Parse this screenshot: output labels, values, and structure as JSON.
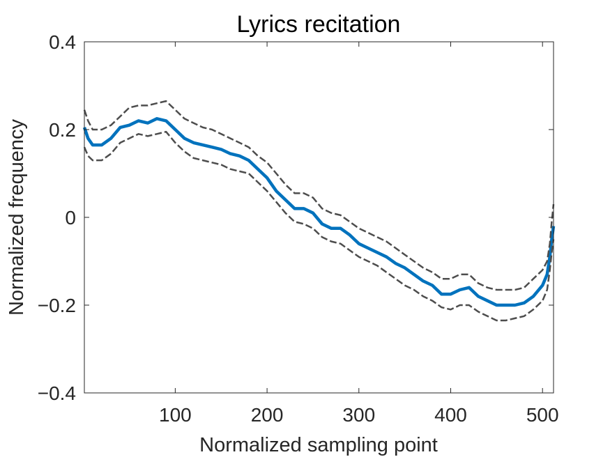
{
  "chart_data": {
    "type": "line",
    "title": "Lyrics recitation",
    "xlabel": "Normalized sampling point",
    "ylabel": "Normalized frequency",
    "xlim": [
      1,
      512
    ],
    "ylim": [
      -0.4,
      0.4
    ],
    "xticks": [
      100,
      200,
      300,
      400,
      500
    ],
    "yticks": [
      -0.4,
      -0.2,
      0,
      0.2,
      0.4
    ],
    "xtick_labels": [
      "100",
      "200",
      "300",
      "400",
      "500"
    ],
    "ytick_labels": [
      "−0.4",
      "−0.2",
      "0",
      "0.2",
      "0.4"
    ],
    "grid": false,
    "colors": {
      "mean": "#0072BD",
      "bounds": "#4D4D4D",
      "axes": "#262626"
    },
    "x": [
      1,
      5,
      10,
      20,
      30,
      40,
      50,
      60,
      70,
      80,
      90,
      100,
      110,
      120,
      130,
      140,
      150,
      160,
      170,
      180,
      190,
      200,
      210,
      220,
      230,
      240,
      250,
      260,
      270,
      280,
      290,
      300,
      310,
      320,
      330,
      340,
      350,
      360,
      370,
      380,
      390,
      400,
      410,
      420,
      430,
      440,
      450,
      460,
      470,
      480,
      490,
      500,
      505,
      508,
      510,
      512
    ],
    "series": [
      {
        "style": "solid",
        "values": [
          0.205,
          0.18,
          0.165,
          0.165,
          0.18,
          0.205,
          0.21,
          0.22,
          0.215,
          0.225,
          0.22,
          0.2,
          0.18,
          0.17,
          0.165,
          0.16,
          0.155,
          0.145,
          0.14,
          0.13,
          0.11,
          0.09,
          0.06,
          0.04,
          0.02,
          0.02,
          0.01,
          -0.015,
          -0.025,
          -0.025,
          -0.04,
          -0.06,
          -0.07,
          -0.08,
          -0.09,
          -0.105,
          -0.115,
          -0.13,
          -0.145,
          -0.155,
          -0.175,
          -0.175,
          -0.165,
          -0.16,
          -0.18,
          -0.19,
          -0.2,
          -0.2,
          -0.2,
          -0.195,
          -0.18,
          -0.155,
          -0.13,
          -0.09,
          -0.05,
          -0.02
        ]
      },
      {
        "style": "dashed",
        "values": [
          0.245,
          0.22,
          0.2,
          0.2,
          0.21,
          0.23,
          0.25,
          0.255,
          0.255,
          0.26,
          0.265,
          0.245,
          0.225,
          0.215,
          0.205,
          0.2,
          0.19,
          0.18,
          0.17,
          0.16,
          0.14,
          0.125,
          0.1,
          0.075,
          0.055,
          0.055,
          0.045,
          0.02,
          0.01,
          0.005,
          -0.01,
          -0.025,
          -0.035,
          -0.045,
          -0.055,
          -0.07,
          -0.085,
          -0.1,
          -0.115,
          -0.125,
          -0.14,
          -0.14,
          -0.13,
          -0.13,
          -0.15,
          -0.16,
          -0.165,
          -0.165,
          -0.165,
          -0.16,
          -0.14,
          -0.12,
          -0.1,
          -0.06,
          -0.01,
          0.03
        ]
      },
      {
        "style": "dashed",
        "values": [
          0.16,
          0.14,
          0.13,
          0.13,
          0.145,
          0.17,
          0.18,
          0.19,
          0.185,
          0.19,
          0.195,
          0.17,
          0.15,
          0.135,
          0.13,
          0.125,
          0.12,
          0.11,
          0.105,
          0.1,
          0.08,
          0.06,
          0.035,
          0.01,
          -0.01,
          -0.015,
          -0.025,
          -0.045,
          -0.055,
          -0.06,
          -0.075,
          -0.09,
          -0.1,
          -0.11,
          -0.125,
          -0.14,
          -0.155,
          -0.165,
          -0.18,
          -0.19,
          -0.205,
          -0.21,
          -0.2,
          -0.2,
          -0.215,
          -0.225,
          -0.235,
          -0.235,
          -0.23,
          -0.225,
          -0.21,
          -0.19,
          -0.165,
          -0.12,
          -0.08,
          -0.05
        ]
      }
    ]
  }
}
